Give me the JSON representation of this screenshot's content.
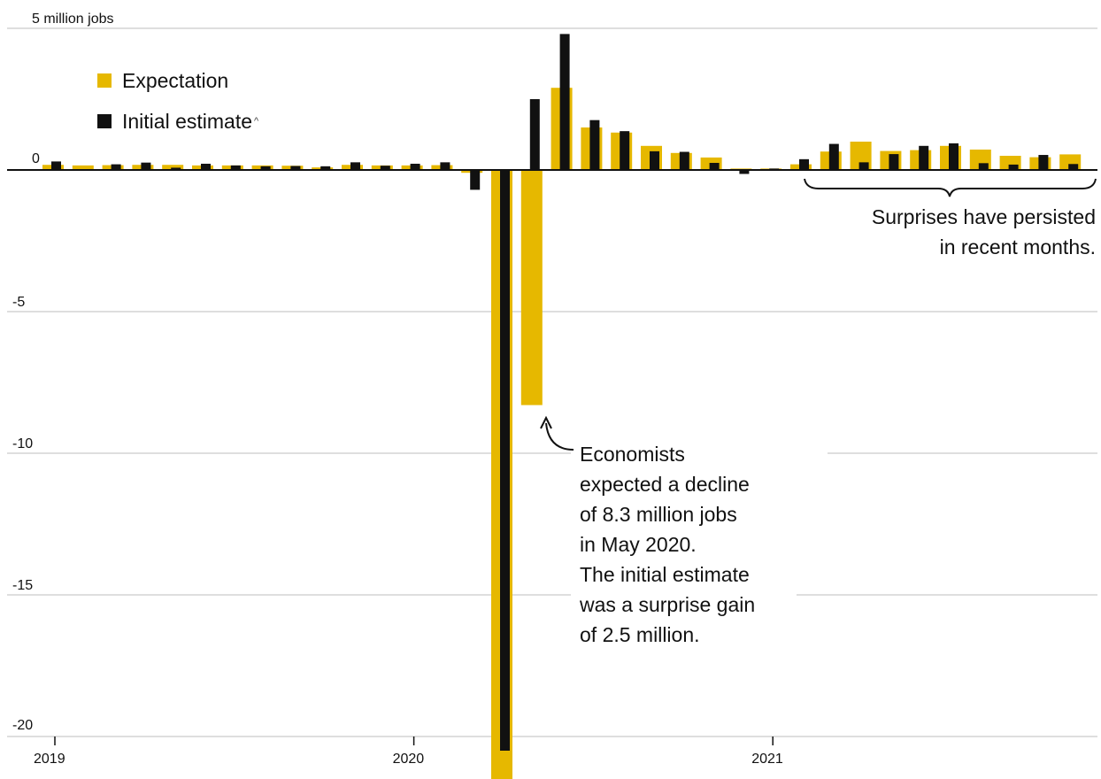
{
  "chart_data": {
    "type": "bar",
    "ylabel": "million jobs",
    "ylim": [
      -20,
      5
    ],
    "yticks": [
      5,
      0,
      -5,
      -10,
      -15,
      -20
    ],
    "ytick_labels": [
      "5 million jobs",
      "0",
      "-5",
      "-10",
      "-15",
      "-20"
    ],
    "xtick_labels": [
      "2019",
      "2020",
      "2021"
    ],
    "categories": [
      "2019-01",
      "2019-02",
      "2019-03",
      "2019-04",
      "2019-05",
      "2019-06",
      "2019-07",
      "2019-08",
      "2019-09",
      "2019-10",
      "2019-11",
      "2019-12",
      "2020-01",
      "2020-02",
      "2020-03",
      "2020-04",
      "2020-05",
      "2020-06",
      "2020-07",
      "2020-08",
      "2020-09",
      "2020-10",
      "2020-11",
      "2020-12",
      "2021-01",
      "2021-02",
      "2021-03",
      "2021-04",
      "2021-05",
      "2021-06",
      "2021-07",
      "2021-08",
      "2021-09",
      "2021-10",
      "2021-11"
    ],
    "series": [
      {
        "name": "Expectation",
        "color": "#e6b800",
        "values": [
          0.18,
          0.16,
          0.17,
          0.18,
          0.18,
          0.16,
          0.16,
          0.16,
          0.15,
          0.09,
          0.18,
          0.16,
          0.16,
          0.17,
          -0.1,
          -22.0,
          -8.3,
          2.9,
          1.5,
          1.32,
          0.85,
          0.6,
          0.44,
          0.05,
          0.05,
          0.2,
          0.65,
          1.0,
          0.67,
          0.7,
          0.85,
          0.72,
          0.5,
          0.45,
          0.55
        ]
      },
      {
        "name": "Initial estimate",
        "color": "#111111",
        "values": [
          0.3,
          0.02,
          0.2,
          0.26,
          0.08,
          0.22,
          0.16,
          0.13,
          0.14,
          0.13,
          0.27,
          0.15,
          0.22,
          0.27,
          -0.7,
          -20.5,
          2.5,
          4.8,
          1.76,
          1.37,
          0.66,
          0.64,
          0.25,
          -0.14,
          0.05,
          0.38,
          0.92,
          0.27,
          0.56,
          0.85,
          0.94,
          0.24,
          0.19,
          0.53,
          0.21
        ]
      }
    ]
  },
  "legend": {
    "expectation_label": "Expectation",
    "initial_label": "Initial estimate",
    "initial_marker": "^"
  },
  "annotations": {
    "may2020": [
      "Economists",
      "expected a decline",
      "of 8.3 million jobs",
      "in May 2020.",
      "The initial estimate",
      "was a surprise gain",
      "of 2.5 million."
    ],
    "recent": [
      "Surprises have persisted",
      "in recent months."
    ]
  }
}
